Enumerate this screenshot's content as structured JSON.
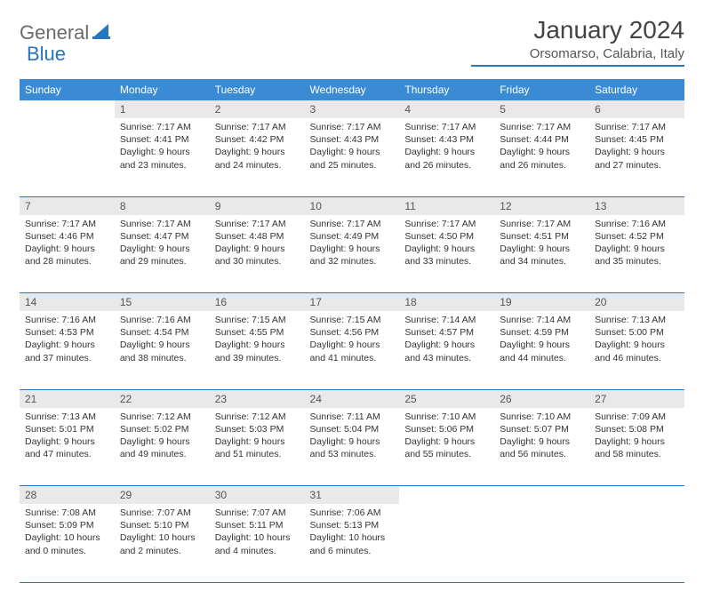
{
  "brand": {
    "part1": "General",
    "part2": "Blue"
  },
  "title": "January 2024",
  "location": "Orsomarso, Calabria, Italy",
  "colors": {
    "header_bg": "#3b8bd4",
    "accent": "#2676c0",
    "daynum_bg": "#e9e9e9",
    "text": "#333333",
    "logo_gray": "#6b6b6b"
  },
  "days_of_week": [
    "Sunday",
    "Monday",
    "Tuesday",
    "Wednesday",
    "Thursday",
    "Friday",
    "Saturday"
  ],
  "weeks": [
    [
      null,
      {
        "n": "1",
        "sunrise": "7:17 AM",
        "sunset": "4:41 PM",
        "daylight": "9 hours and 23 minutes."
      },
      {
        "n": "2",
        "sunrise": "7:17 AM",
        "sunset": "4:42 PM",
        "daylight": "9 hours and 24 minutes."
      },
      {
        "n": "3",
        "sunrise": "7:17 AM",
        "sunset": "4:43 PM",
        "daylight": "9 hours and 25 minutes."
      },
      {
        "n": "4",
        "sunrise": "7:17 AM",
        "sunset": "4:43 PM",
        "daylight": "9 hours and 26 minutes."
      },
      {
        "n": "5",
        "sunrise": "7:17 AM",
        "sunset": "4:44 PM",
        "daylight": "9 hours and 26 minutes."
      },
      {
        "n": "6",
        "sunrise": "7:17 AM",
        "sunset": "4:45 PM",
        "daylight": "9 hours and 27 minutes."
      }
    ],
    [
      {
        "n": "7",
        "sunrise": "7:17 AM",
        "sunset": "4:46 PM",
        "daylight": "9 hours and 28 minutes."
      },
      {
        "n": "8",
        "sunrise": "7:17 AM",
        "sunset": "4:47 PM",
        "daylight": "9 hours and 29 minutes."
      },
      {
        "n": "9",
        "sunrise": "7:17 AM",
        "sunset": "4:48 PM",
        "daylight": "9 hours and 30 minutes."
      },
      {
        "n": "10",
        "sunrise": "7:17 AM",
        "sunset": "4:49 PM",
        "daylight": "9 hours and 32 minutes."
      },
      {
        "n": "11",
        "sunrise": "7:17 AM",
        "sunset": "4:50 PM",
        "daylight": "9 hours and 33 minutes."
      },
      {
        "n": "12",
        "sunrise": "7:17 AM",
        "sunset": "4:51 PM",
        "daylight": "9 hours and 34 minutes."
      },
      {
        "n": "13",
        "sunrise": "7:16 AM",
        "sunset": "4:52 PM",
        "daylight": "9 hours and 35 minutes."
      }
    ],
    [
      {
        "n": "14",
        "sunrise": "7:16 AM",
        "sunset": "4:53 PM",
        "daylight": "9 hours and 37 minutes."
      },
      {
        "n": "15",
        "sunrise": "7:16 AM",
        "sunset": "4:54 PM",
        "daylight": "9 hours and 38 minutes."
      },
      {
        "n": "16",
        "sunrise": "7:15 AM",
        "sunset": "4:55 PM",
        "daylight": "9 hours and 39 minutes."
      },
      {
        "n": "17",
        "sunrise": "7:15 AM",
        "sunset": "4:56 PM",
        "daylight": "9 hours and 41 minutes."
      },
      {
        "n": "18",
        "sunrise": "7:14 AM",
        "sunset": "4:57 PM",
        "daylight": "9 hours and 43 minutes."
      },
      {
        "n": "19",
        "sunrise": "7:14 AM",
        "sunset": "4:59 PM",
        "daylight": "9 hours and 44 minutes."
      },
      {
        "n": "20",
        "sunrise": "7:13 AM",
        "sunset": "5:00 PM",
        "daylight": "9 hours and 46 minutes."
      }
    ],
    [
      {
        "n": "21",
        "sunrise": "7:13 AM",
        "sunset": "5:01 PM",
        "daylight": "9 hours and 47 minutes."
      },
      {
        "n": "22",
        "sunrise": "7:12 AM",
        "sunset": "5:02 PM",
        "daylight": "9 hours and 49 minutes."
      },
      {
        "n": "23",
        "sunrise": "7:12 AM",
        "sunset": "5:03 PM",
        "daylight": "9 hours and 51 minutes."
      },
      {
        "n": "24",
        "sunrise": "7:11 AM",
        "sunset": "5:04 PM",
        "daylight": "9 hours and 53 minutes."
      },
      {
        "n": "25",
        "sunrise": "7:10 AM",
        "sunset": "5:06 PM",
        "daylight": "9 hours and 55 minutes."
      },
      {
        "n": "26",
        "sunrise": "7:10 AM",
        "sunset": "5:07 PM",
        "daylight": "9 hours and 56 minutes."
      },
      {
        "n": "27",
        "sunrise": "7:09 AM",
        "sunset": "5:08 PM",
        "daylight": "9 hours and 58 minutes."
      }
    ],
    [
      {
        "n": "28",
        "sunrise": "7:08 AM",
        "sunset": "5:09 PM",
        "daylight": "10 hours and 0 minutes."
      },
      {
        "n": "29",
        "sunrise": "7:07 AM",
        "sunset": "5:10 PM",
        "daylight": "10 hours and 2 minutes."
      },
      {
        "n": "30",
        "sunrise": "7:07 AM",
        "sunset": "5:11 PM",
        "daylight": "10 hours and 4 minutes."
      },
      {
        "n": "31",
        "sunrise": "7:06 AM",
        "sunset": "5:13 PM",
        "daylight": "10 hours and 6 minutes."
      },
      null,
      null,
      null
    ]
  ],
  "labels": {
    "sunrise": "Sunrise:",
    "sunset": "Sunset:",
    "daylight": "Daylight:"
  }
}
